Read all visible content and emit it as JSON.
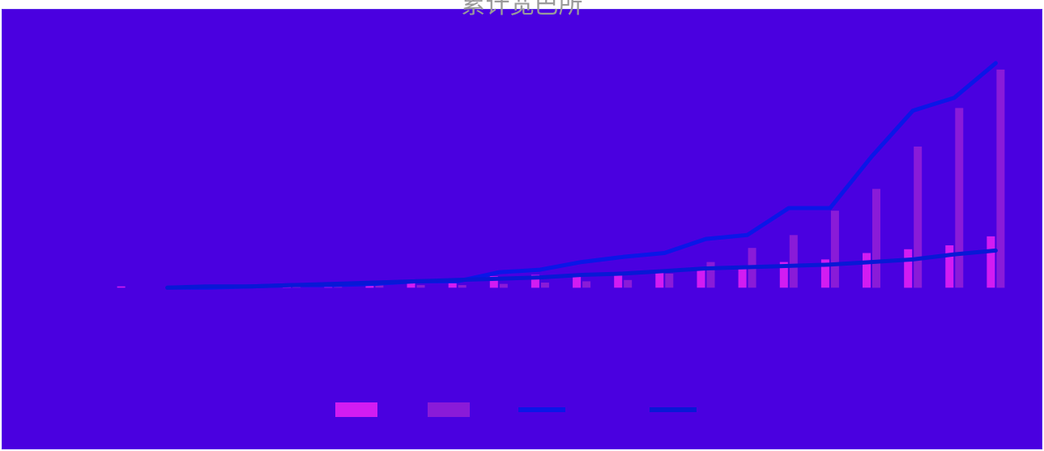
{
  "chart_data": {
    "type": "bar",
    "title": "累计宽巴所",
    "bar_colors": [
      "#d21cf2",
      "#8a1bd8"
    ],
    "line_colors": [
      "#0a16e8",
      "#0818d6"
    ],
    "background": "#4a00e0",
    "categories": [
      "",
      "",
      "",
      "",
      "",
      "",
      "",
      "",
      "",
      "",
      "",
      "",
      "",
      "",
      "",
      "",
      "",
      "",
      "",
      "",
      "",
      ""
    ],
    "series": [
      {
        "type": "bar",
        "values": [
          1,
          0,
          1,
          1,
          1,
          2,
          3,
          5,
          5,
          9,
          10,
          10,
          12,
          13,
          15,
          17,
          20,
          22,
          27,
          30,
          33,
          40
        ]
      },
      {
        "type": "bar",
        "values": [
          0,
          0,
          0,
          1,
          1,
          1,
          2,
          2,
          2,
          3,
          4,
          5,
          6,
          11,
          20,
          31,
          41,
          60,
          77,
          110,
          140,
          170
        ]
      },
      {
        "type": "line",
        "values": [
          0,
          0,
          0,
          1,
          2,
          2,
          3,
          5,
          5,
          12,
          14,
          20,
          24,
          27,
          38,
          41,
          62,
          62,
          102,
          138,
          148,
          175
        ]
      },
      {
        "type": "line",
        "values": [
          0,
          0,
          1,
          1,
          2,
          3,
          4,
          5,
          6,
          7,
          8,
          10,
          11,
          13,
          15,
          16,
          17,
          18,
          20,
          22,
          26,
          29
        ]
      }
    ],
    "ylim": [
      -8,
      180
    ]
  }
}
